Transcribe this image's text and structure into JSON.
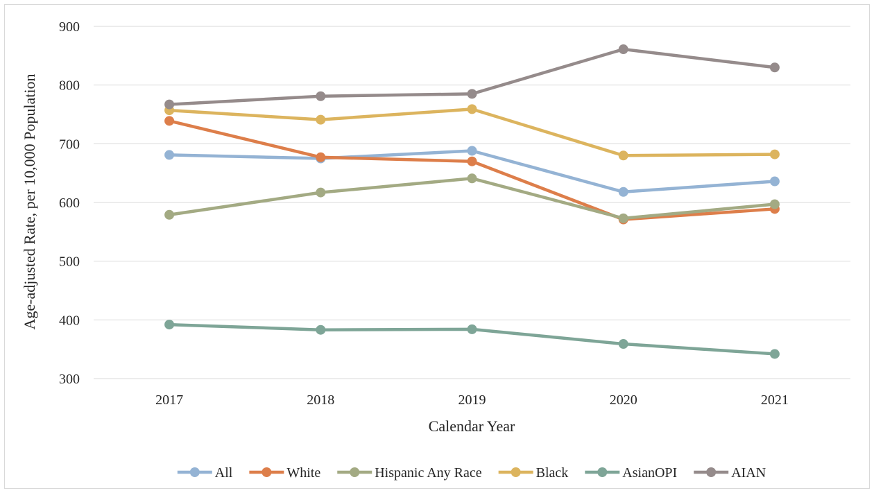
{
  "chart_data": {
    "type": "line",
    "title": "",
    "xlabel": "Calendar Year",
    "ylabel": "Age-adjusted Rate, per 10,000 Population",
    "categories": [
      "2017",
      "2018",
      "2019",
      "2020",
      "2021"
    ],
    "ylim": [
      300,
      900
    ],
    "yticks": [
      300,
      400,
      500,
      600,
      700,
      800,
      900
    ],
    "grid": "horizontal",
    "legend_position": "bottom",
    "series": [
      {
        "name": "All",
        "color": "#94b3d4",
        "values": [
          681,
          675,
          688,
          618,
          636
        ]
      },
      {
        "name": "White",
        "color": "#dd7e4a",
        "values": [
          739,
          677,
          670,
          571,
          589
        ]
      },
      {
        "name": "Hispanic Any Race",
        "color": "#a3aa83",
        "values": [
          579,
          617,
          641,
          573,
          597
        ]
      },
      {
        "name": "Black",
        "color": "#dcb45e",
        "values": [
          757,
          741,
          759,
          680,
          682
        ]
      },
      {
        "name": "AsianOPI",
        "color": "#7ea597",
        "values": [
          392,
          383,
          384,
          359,
          342
        ]
      },
      {
        "name": "AIAN",
        "color": "#958b8b",
        "values": [
          767,
          781,
          785,
          861,
          830
        ]
      }
    ]
  }
}
